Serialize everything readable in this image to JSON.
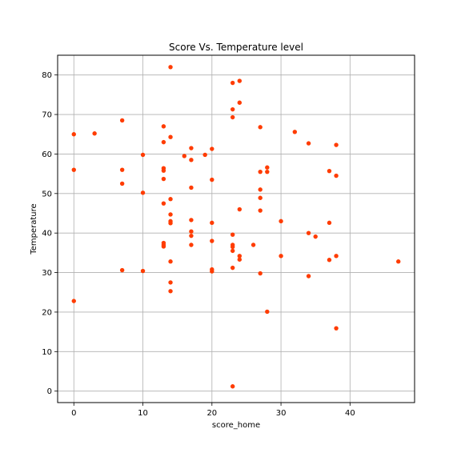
{
  "chart_data": {
    "type": "scatter",
    "title": "Score Vs. Temperature level",
    "xlabel": "score_home",
    "ylabel": "Temperature",
    "xlim": [
      -2.35,
      49.35
    ],
    "ylim": [
      -2.9,
      85.0
    ],
    "xticks": [
      0,
      10,
      20,
      30,
      40
    ],
    "yticks": [
      0,
      10,
      20,
      30,
      40,
      50,
      60,
      70,
      80
    ],
    "grid": true,
    "marker_color": "#ff3c00",
    "series": [
      {
        "points": [
          {
            "x": 0,
            "y": 65
          },
          {
            "x": 0,
            "y": 56
          },
          {
            "x": 0,
            "y": 22.8
          },
          {
            "x": 3,
            "y": 65.2
          },
          {
            "x": 7,
            "y": 68.5
          },
          {
            "x": 7,
            "y": 56
          },
          {
            "x": 7,
            "y": 52.5
          },
          {
            "x": 7,
            "y": 30.6
          },
          {
            "x": 10,
            "y": 59.8
          },
          {
            "x": 10,
            "y": 50.2
          },
          {
            "x": 10,
            "y": 30.4
          },
          {
            "x": 13,
            "y": 67
          },
          {
            "x": 13,
            "y": 63
          },
          {
            "x": 13,
            "y": 56.4
          },
          {
            "x": 13,
            "y": 55.8
          },
          {
            "x": 13,
            "y": 53.7
          },
          {
            "x": 13,
            "y": 47.5
          },
          {
            "x": 13,
            "y": 37.5
          },
          {
            "x": 13,
            "y": 37
          },
          {
            "x": 13,
            "y": 36.6
          },
          {
            "x": 14,
            "y": 82
          },
          {
            "x": 14,
            "y": 64.3
          },
          {
            "x": 14,
            "y": 48.6
          },
          {
            "x": 14,
            "y": 44.7
          },
          {
            "x": 14,
            "y": 43
          },
          {
            "x": 14,
            "y": 42.5
          },
          {
            "x": 14,
            "y": 32.8
          },
          {
            "x": 14,
            "y": 27.5
          },
          {
            "x": 14,
            "y": 25.3
          },
          {
            "x": 16,
            "y": 59.5
          },
          {
            "x": 17,
            "y": 61.5
          },
          {
            "x": 17,
            "y": 58.5
          },
          {
            "x": 17,
            "y": 51.5
          },
          {
            "x": 17,
            "y": 43.3
          },
          {
            "x": 17,
            "y": 40.4
          },
          {
            "x": 17,
            "y": 39.3
          },
          {
            "x": 17,
            "y": 37
          },
          {
            "x": 19,
            "y": 59.8
          },
          {
            "x": 20,
            "y": 61.3
          },
          {
            "x": 20,
            "y": 53.5
          },
          {
            "x": 20,
            "y": 42.6
          },
          {
            "x": 20,
            "y": 38
          },
          {
            "x": 20,
            "y": 30.8
          },
          {
            "x": 20,
            "y": 30.3
          },
          {
            "x": 23,
            "y": 78
          },
          {
            "x": 23,
            "y": 71.3
          },
          {
            "x": 23,
            "y": 69.3
          },
          {
            "x": 23,
            "y": 39.6
          },
          {
            "x": 23,
            "y": 37
          },
          {
            "x": 23,
            "y": 36.5
          },
          {
            "x": 23,
            "y": 35.5
          },
          {
            "x": 23,
            "y": 31.2
          },
          {
            "x": 23,
            "y": 1.2
          },
          {
            "x": 24,
            "y": 78.5
          },
          {
            "x": 24,
            "y": 73
          },
          {
            "x": 24,
            "y": 46
          },
          {
            "x": 24,
            "y": 34.2
          },
          {
            "x": 24,
            "y": 33.3
          },
          {
            "x": 26,
            "y": 37
          },
          {
            "x": 27,
            "y": 66.8
          },
          {
            "x": 27,
            "y": 55.5
          },
          {
            "x": 27,
            "y": 51
          },
          {
            "x": 27,
            "y": 48.9
          },
          {
            "x": 27,
            "y": 45.7
          },
          {
            "x": 27,
            "y": 29.8
          },
          {
            "x": 28,
            "y": 56.6
          },
          {
            "x": 28,
            "y": 55.5
          },
          {
            "x": 28,
            "y": 20.1
          },
          {
            "x": 30,
            "y": 43
          },
          {
            "x": 30,
            "y": 34.2
          },
          {
            "x": 32,
            "y": 65.6
          },
          {
            "x": 34,
            "y": 62.7
          },
          {
            "x": 34,
            "y": 40
          },
          {
            "x": 34,
            "y": 29.1
          },
          {
            "x": 35,
            "y": 39.1
          },
          {
            "x": 37,
            "y": 55.7
          },
          {
            "x": 37,
            "y": 42.6
          },
          {
            "x": 37,
            "y": 33.2
          },
          {
            "x": 38,
            "y": 62.3
          },
          {
            "x": 38,
            "y": 54.5
          },
          {
            "x": 38,
            "y": 34.2
          },
          {
            "x": 38,
            "y": 15.9
          },
          {
            "x": 47,
            "y": 32.8
          }
        ]
      }
    ]
  }
}
